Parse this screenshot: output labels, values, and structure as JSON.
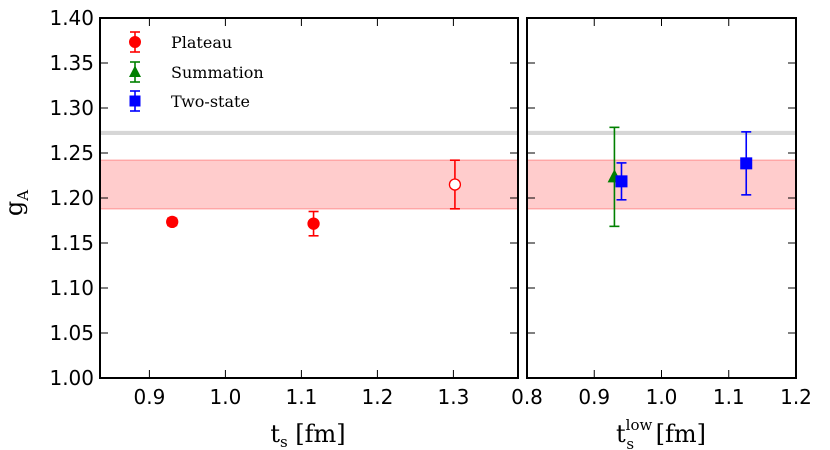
{
  "chart_data": {
    "type": "scatter",
    "ylabel": "g",
    "ylabel_sub": "A",
    "ylim": [
      1.0,
      1.4
    ],
    "yticks": [
      "1.00",
      "1.05",
      "1.10",
      "1.15",
      "1.20",
      "1.25",
      "1.30",
      "1.35",
      "1.40"
    ],
    "bands": {
      "gray": {
        "center": 1.2723,
        "halfwidth": 0.0023,
        "color": "#bbbbbb"
      },
      "red": {
        "low": 1.188,
        "high": 1.242,
        "color": "#ff9999"
      }
    },
    "legend": {
      "position": "upper-left",
      "entries": [
        {
          "label": "Plateau",
          "marker": "circle",
          "color": "#ff0000"
        },
        {
          "label": "Summation",
          "marker": "triangle",
          "color": "#008000"
        },
        {
          "label": "Two-state",
          "marker": "square",
          "color": "#0000ff"
        }
      ]
    },
    "panels": [
      {
        "xlabel": "t",
        "xlabel_sub": "s",
        "xlabel_suffix": " [fm]",
        "xlim": [
          0.835,
          1.385
        ],
        "xticks": [
          "0.9",
          "1.0",
          "1.1",
          "1.2",
          "1.3"
        ],
        "series": [
          {
            "name": "Plateau",
            "marker": "circle",
            "color": "#ff0000",
            "points": [
              {
                "x": 0.93,
                "y": 1.1735,
                "err": 0.004,
                "filled": true
              },
              {
                "x": 1.116,
                "y": 1.1715,
                "err": 0.0135,
                "filled": true
              },
              {
                "x": 1.302,
                "y": 1.215,
                "err": 0.027,
                "filled": false
              }
            ]
          }
        ]
      },
      {
        "xlabel": "t",
        "xlabel_sub": "s",
        "xlabel_sup": "low",
        "xlabel_suffix": " [fm]",
        "xlim": [
          0.8,
          1.2
        ],
        "xticks": [
          "0.8",
          "0.9",
          "1.0",
          "1.1",
          "1.2"
        ],
        "series": [
          {
            "name": "Summation",
            "marker": "triangle",
            "color": "#008000",
            "points": [
              {
                "x": 0.93,
                "y": 1.2235,
                "err": 0.055,
                "filled": true
              }
            ]
          },
          {
            "name": "Two-state",
            "marker": "square",
            "color": "#0000ff",
            "points": [
              {
                "x": 0.9405,
                "y": 1.2185,
                "err": 0.0205,
                "filled": true
              },
              {
                "x": 1.126,
                "y": 1.2385,
                "err": 0.035,
                "filled": true
              }
            ]
          }
        ]
      }
    ]
  }
}
